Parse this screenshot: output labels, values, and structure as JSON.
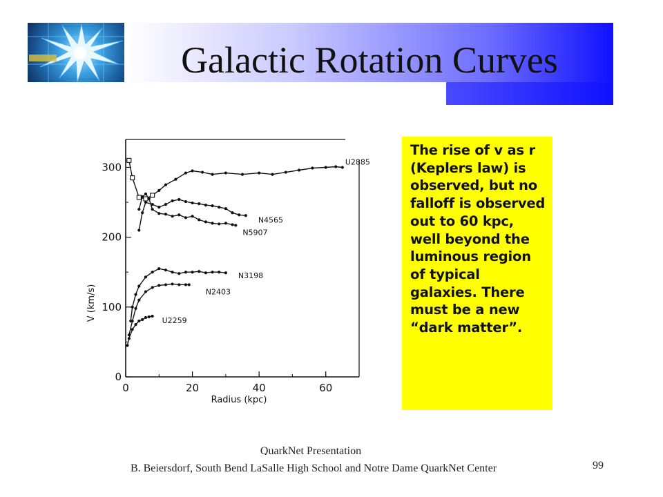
{
  "slide": {
    "title": "Galactic Rotation Curves",
    "note": "The rise of v as r (Keplers law) is observed, but no falloff is observed out to 60 kpc, well beyond the luminous region of typical galaxies. There must be a new “dark matter”.",
    "footer_line1": "QuarkNet Presentation",
    "footer_line2": "B. Beiersdorf,  South Bend LaSalle High School  and  Notre Dame QuarkNet Center",
    "page_number": "99",
    "colors": {
      "title_band_end": "#1010ff",
      "note_background": "#ffff00"
    }
  },
  "chart_data": {
    "type": "line",
    "title": "",
    "xlabel": "Radius  (kpc)",
    "ylabel": "V  (km/s)",
    "xlim": [
      0,
      70
    ],
    "ylim": [
      0,
      340
    ],
    "xticks": [
      "0",
      "20",
      "40",
      "60"
    ],
    "yticks": [
      "0",
      "100",
      "200",
      "300"
    ],
    "grid": false,
    "legend": "labels placed at end of each curve",
    "series": [
      {
        "name": "U2885",
        "x": [
          1,
          2,
          4,
          6,
          8,
          10,
          12,
          15,
          18,
          20,
          23,
          26,
          30,
          35,
          40,
          44,
          48,
          52,
          56,
          60,
          63,
          65
        ],
        "y": [
          310,
          285,
          257,
          255,
          260,
          267,
          275,
          283,
          292,
          295,
          293,
          290,
          292,
          290,
          292,
          290,
          293,
          296,
          299,
          300,
          301,
          300
        ]
      },
      {
        "name": "N4565",
        "x": [
          4,
          5,
          6,
          8,
          10,
          12,
          14,
          16,
          18,
          20,
          22,
          24,
          26,
          28,
          30,
          32,
          34,
          36
        ],
        "y": [
          210,
          235,
          250,
          247,
          243,
          247,
          252,
          254,
          251,
          249,
          248,
          246,
          245,
          243,
          241,
          235,
          232,
          231
        ]
      },
      {
        "name": "N5907",
        "x": [
          4,
          5,
          6,
          7,
          8,
          10,
          12,
          14,
          16,
          18,
          20,
          22,
          24,
          26,
          28,
          30,
          32,
          33
        ],
        "y": [
          240,
          258,
          262,
          255,
          240,
          234,
          233,
          230,
          232,
          228,
          230,
          225,
          222,
          220,
          219,
          220,
          218,
          217
        ]
      },
      {
        "name": "N3198",
        "x": [
          1.5,
          2,
          3,
          4,
          6,
          8,
          10,
          12,
          14,
          16,
          18,
          20,
          22,
          24,
          26,
          28,
          30
        ],
        "y": [
          80,
          100,
          118,
          130,
          143,
          150,
          155,
          153,
          150,
          148,
          150,
          150,
          151,
          149,
          150,
          150,
          149
        ]
      },
      {
        "name": "N2403",
        "x": [
          1,
          2,
          3,
          4,
          6,
          8,
          10,
          12,
          14,
          16,
          18,
          19
        ],
        "y": [
          60,
          80,
          98,
          110,
          122,
          128,
          131,
          132,
          133,
          132,
          132,
          132
        ]
      },
      {
        "name": "U2259",
        "x": [
          0.5,
          1,
          2,
          3,
          4,
          5,
          6,
          7,
          8
        ],
        "y": [
          45,
          55,
          68,
          75,
          80,
          82,
          85,
          86,
          87
        ]
      }
    ]
  }
}
